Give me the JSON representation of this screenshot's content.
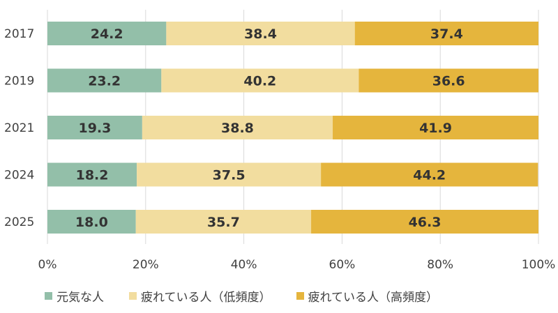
{
  "chart_data": {
    "type": "bar",
    "orientation": "horizontal",
    "stacked": true,
    "percent": true,
    "categories": [
      "2017",
      "2019",
      "2021",
      "2024",
      "2025"
    ],
    "series": [
      {
        "name": "元気な人",
        "color": "#93bfa9",
        "values": [
          24.2,
          23.2,
          19.3,
          18.2,
          18.0
        ]
      },
      {
        "name": "疲れている人（低頻度）",
        "color": "#f2dd9f",
        "values": [
          38.4,
          40.2,
          38.8,
          37.5,
          35.7
        ]
      },
      {
        "name": "疲れている人（高頻度）",
        "color": "#e5b53d",
        "values": [
          37.4,
          36.6,
          41.9,
          44.2,
          46.3
        ]
      }
    ],
    "xlim": [
      0,
      100
    ],
    "x_ticks": [
      "0%",
      "20%",
      "40%",
      "60%",
      "80%",
      "100%"
    ],
    "grid": "vertical",
    "legend_position": "bottom",
    "title": "",
    "xlabel": "",
    "ylabel": ""
  }
}
